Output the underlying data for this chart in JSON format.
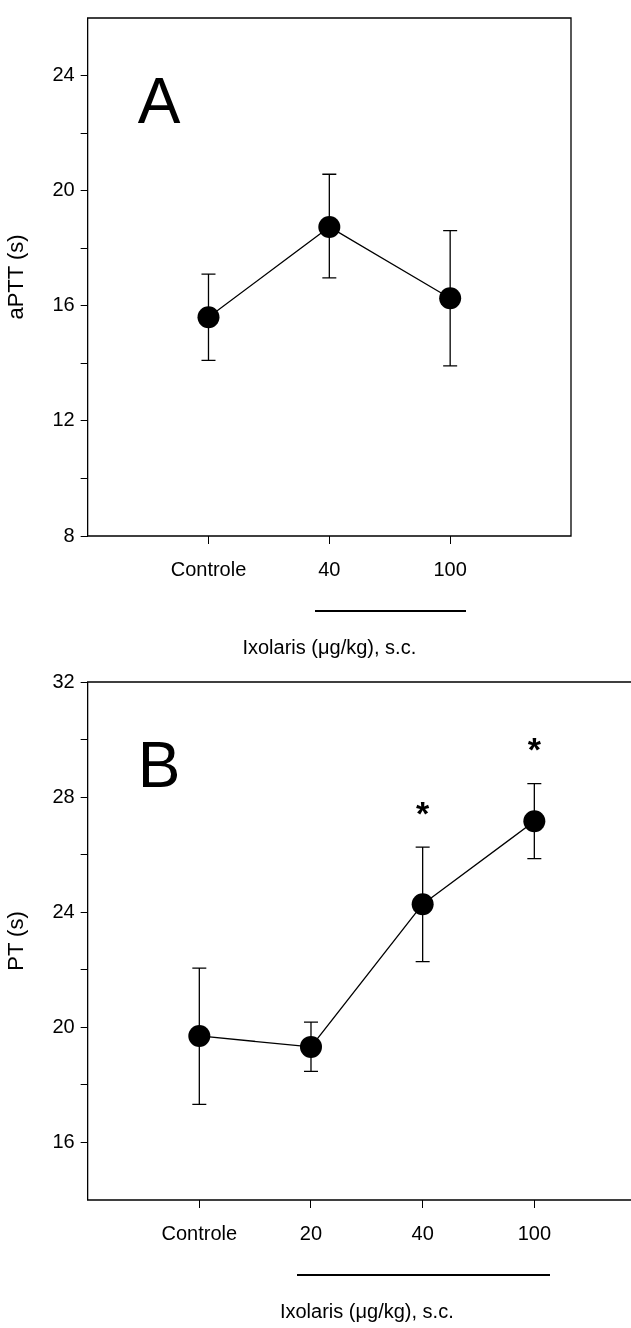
{
  "chart_data": [
    {
      "type": "line",
      "title": "A",
      "ylabel": "aPTT (s)",
      "xlabel": "Ixolaris (μg/kg), s.c.",
      "categories": [
        "Controle",
        "40",
        "100"
      ],
      "series": [
        {
          "color": "#000000",
          "values": [
            15.6,
            18.74,
            16.26
          ],
          "errors": [
            [
              14.1,
              17.1
            ],
            [
              16.97,
              20.57
            ],
            [
              13.91,
              18.61
            ]
          ]
        }
      ],
      "ylim": [
        8,
        26
      ],
      "yticks": [
        8,
        {
          "value": 10,
          "label": null
        },
        12,
        {
          "value": 14,
          "label": null
        },
        16,
        {
          "value": 18,
          "label": null
        },
        20,
        {
          "value": 22,
          "label": null
        },
        24
      ],
      "marker": "circle"
    },
    {
      "type": "line",
      "title": "B",
      "ylabel": "PT (s)",
      "xlabel": "Ixolaris (μg/kg), s.c.",
      "categories": [
        "Controle",
        "20",
        "40",
        "100"
      ],
      "series": [
        {
          "color": "#000000",
          "values": [
            19.7,
            19.32,
            24.28,
            27.16
          ],
          "errors": [
            [
              17.32,
              22.06
            ],
            [
              18.47,
              20.18
            ],
            [
              22.28,
              26.26
            ],
            [
              25.86,
              28.47
            ]
          ]
        }
      ],
      "ylim": [
        14,
        32
      ],
      "yticks": [
        16,
        {
          "value": 18,
          "label": null
        },
        20,
        {
          "value": 22,
          "label": null
        },
        24,
        {
          "value": 26,
          "label": null
        },
        28,
        {
          "value": 30,
          "label": null
        },
        32
      ],
      "annotations": [
        "*",
        "*"
      ],
      "marker": "circle"
    }
  ]
}
